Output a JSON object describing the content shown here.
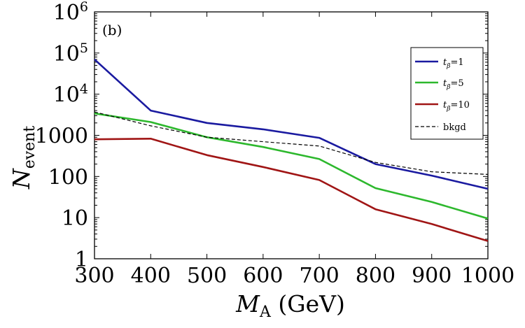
{
  "chart_data": {
    "type": "line",
    "panel_label": "(b)",
    "xlabel": {
      "main": "M",
      "sub": "A",
      "unit": " (GeV)"
    },
    "ylabel": {
      "main": "N",
      "sub": "event"
    },
    "x": [
      300,
      400,
      500,
      600,
      700,
      800,
      900,
      1000
    ],
    "xlim": [
      300,
      1000
    ],
    "ylim": [
      1,
      1000000
    ],
    "yscale": "log",
    "xticks": [
      {
        "value": 300,
        "label": "300"
      },
      {
        "value": 400,
        "label": "400"
      },
      {
        "value": 500,
        "label": "500"
      },
      {
        "value": 600,
        "label": "600"
      },
      {
        "value": 700,
        "label": "700"
      },
      {
        "value": 800,
        "label": "800"
      },
      {
        "value": 900,
        "label": "900"
      },
      {
        "value": 1000,
        "label": "1000"
      }
    ],
    "yticks": [
      {
        "value": 1,
        "label": "1"
      },
      {
        "value": 10,
        "label": "10"
      },
      {
        "value": 100,
        "label": "100"
      },
      {
        "value": 1000,
        "label": "1000"
      },
      {
        "value": 10000,
        "base": "10",
        "exp": "4"
      },
      {
        "value": 100000,
        "base": "10",
        "exp": "5"
      },
      {
        "value": 1000000,
        "base": "10",
        "exp": "6"
      }
    ],
    "legend_position": "top-right",
    "series": [
      {
        "name": "t_β=1",
        "symbol": "t",
        "sub": "β",
        "suffix": "=1",
        "color": "#1a1aa0",
        "style": "solid",
        "values": [
          70000,
          4000,
          2000,
          1400,
          870,
          200,
          105,
          50
        ]
      },
      {
        "name": "t_β=5",
        "symbol": "t",
        "sub": "β",
        "suffix": "=5",
        "color": "#2db82d",
        "style": "solid",
        "values": [
          3400,
          2100,
          900,
          520,
          265,
          52,
          24,
          9.5
        ]
      },
      {
        "name": "t_β=10",
        "symbol": "t",
        "sub": "β",
        "suffix": "=10",
        "color": "#a01515",
        "style": "solid",
        "values": [
          800,
          830,
          330,
          170,
          82,
          16,
          7,
          2.7
        ]
      },
      {
        "name": "bkgd",
        "symbol": "",
        "sub": "",
        "suffix": "bkgd",
        "color": "#000000",
        "style": "dashed",
        "values": [
          3700,
          1700,
          900,
          700,
          550,
          220,
          130,
          112
        ]
      }
    ]
  }
}
